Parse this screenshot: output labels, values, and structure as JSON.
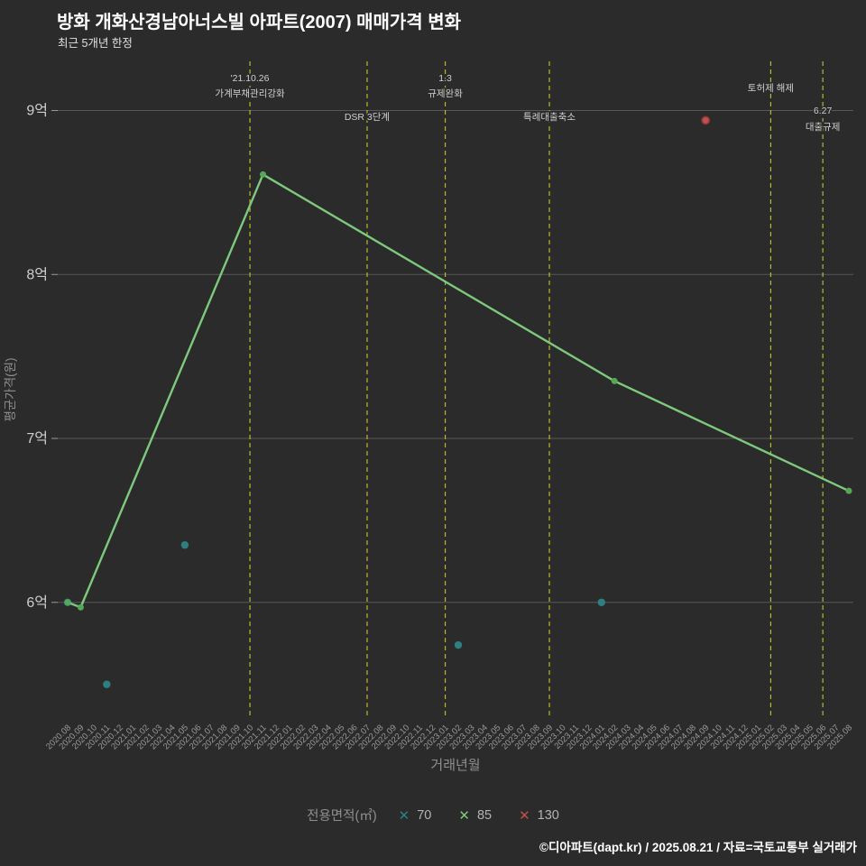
{
  "title": "방화 개화산경남아너스빌 아파트(2007) 매매가격 변화",
  "subtitle": "최근 5개년 한정",
  "footer_credit": "©디아파트(dapt.kr) / 2025.08.21 / 자료=국토교통부 실거래가",
  "colors": {
    "background": "#2b2b2b",
    "grid": "#7d7d7d",
    "event_line": "#b9b92a",
    "tick_text": "#9a9a9a",
    "y_tick_text": "#cfcfcf",
    "axis_title": "#8f8f8f",
    "event_text": "#cfcfcf",
    "series70": "#2e8080",
    "series85": "#7dc97d",
    "series85_marker": "#55a855",
    "series130": "#c0504d",
    "series130_edge": "#8a3734",
    "legend_text": "#b3b3b3",
    "legend_title": "#8f8f8f"
  },
  "chart_data": {
    "type": "line",
    "title": "방화 개화산경남아너스빌 아파트(2007) 매매가격 변화",
    "subtitle": "최근 5개년 한정",
    "xlabel": "거래년월",
    "ylabel": "평균가격(원)",
    "unit": "억",
    "ylim": [
      5.3,
      9.3
    ],
    "grid": "horizontal-only",
    "legend_position": "bottom-center",
    "y_ticks": [
      {
        "value": 6,
        "label": "6억"
      },
      {
        "value": 7,
        "label": "7억"
      },
      {
        "value": 8,
        "label": "8억"
      },
      {
        "value": 9,
        "label": "9억"
      }
    ],
    "x_ticks": [
      "2020.08",
      "2020.09",
      "2020.10",
      "2020.11",
      "2020.12",
      "2021.01",
      "2021.02",
      "2021.03",
      "2021.04",
      "2021.05",
      "2021.06",
      "2021.07",
      "2021.08",
      "2021.09",
      "2021.10",
      "2021.11",
      "2021.12",
      "2022.01",
      "2022.02",
      "2022.03",
      "2022.04",
      "2022.05",
      "2022.06",
      "2022.07",
      "2022.08",
      "2022.09",
      "2022.10",
      "2022.11",
      "2022.12",
      "2023.01",
      "2023.02",
      "2023.03",
      "2023.04",
      "2023.05",
      "2023.06",
      "2023.07",
      "2023.08",
      "2023.09",
      "2023.10",
      "2023.11",
      "2023.12",
      "2024.01",
      "2024.02",
      "2024.03",
      "2024.04",
      "2024.05",
      "2024.06",
      "2024.07",
      "2024.08",
      "2024.09",
      "2024.10",
      "2024.11",
      "2024.12",
      "2025.01",
      "2025.02",
      "2025.03",
      "2025.04",
      "2025.05",
      "2025.06",
      "2025.07",
      "2025.08"
    ],
    "series": [
      {
        "name": "70",
        "style": "scatter",
        "points": [
          [
            "2020.08",
            6.0
          ],
          [
            "2020.11",
            5.5
          ],
          [
            "2021.05",
            6.35
          ],
          [
            "2023.02",
            5.74
          ],
          [
            "2024.01",
            6.0
          ]
        ]
      },
      {
        "name": "85",
        "style": "line",
        "points": [
          [
            "2020.08",
            6.0
          ],
          [
            "2020.09",
            5.97
          ],
          [
            "2021.11",
            8.61
          ],
          [
            "2024.02",
            7.35
          ],
          [
            "2025.08",
            6.68
          ]
        ]
      },
      {
        "name": "130",
        "style": "scatter",
        "points": [
          [
            "2024.09",
            8.94
          ]
        ]
      }
    ],
    "events": [
      {
        "x": "2021.10",
        "lines": [
          "'21.10.26",
          "가계부채관리강화"
        ],
        "label_ys": [
          90,
          107
        ]
      },
      {
        "x": "2022.07",
        "lines": [
          "DSR 3단계"
        ],
        "label_ys": [
          133
        ]
      },
      {
        "x": "2023.01",
        "lines": [
          "1.3",
          "규제완화"
        ],
        "label_ys": [
          90,
          107
        ]
      },
      {
        "x": "2023.09",
        "lines": [
          "특례대출축소"
        ],
        "label_ys": [
          133
        ]
      },
      {
        "x": "2025.02",
        "lines": [
          "토허제 해제"
        ],
        "label_ys": [
          101
        ]
      },
      {
        "x": "2025.06",
        "lines": [
          "6.27",
          "대출규제"
        ],
        "label_ys": [
          126,
          144
        ]
      }
    ],
    "legend": {
      "title": "전용면적(㎡)",
      "mark_glyph": "✕",
      "items": [
        {
          "label": "70",
          "series": "70"
        },
        {
          "label": "85",
          "series": "85"
        },
        {
          "label": "130",
          "series": "130"
        }
      ]
    }
  }
}
